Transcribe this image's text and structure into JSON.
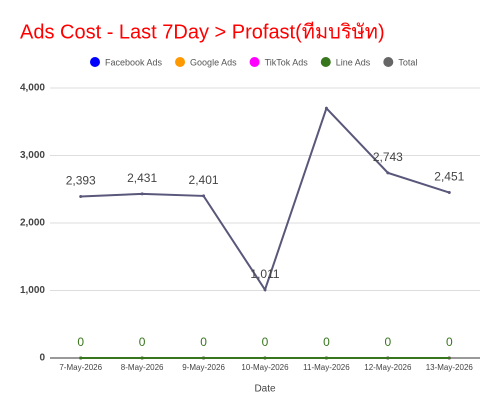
{
  "chart_data": {
    "type": "line",
    "title": "Ads Cost - Last 7Day > Profast(ทีมบริษัท)",
    "x_label": "Date",
    "categories": [
      "7-May-2026",
      "8-May-2026",
      "9-May-2026",
      "10-May-2026",
      "11-May-2026",
      "12-May-2026",
      "13-May-2026"
    ],
    "series": [
      {
        "name": "Facebook Ads",
        "color": "#0000ff",
        "values": [
          0,
          0,
          0,
          0,
          0,
          0,
          0
        ]
      },
      {
        "name": "Google Ads",
        "color": "#ff9900",
        "values": [
          0,
          0,
          0,
          0,
          0,
          0,
          0
        ]
      },
      {
        "name": "TikTok Ads",
        "color": "#ff00ff",
        "values": [
          0,
          0,
          0,
          0,
          0,
          0,
          0
        ]
      },
      {
        "name": "Line Ads",
        "color": "#38761d",
        "values": [
          0,
          0,
          0,
          0,
          0,
          0,
          0
        ],
        "value_labels": [
          "0",
          "0",
          "0",
          "0",
          "0",
          "0",
          "0"
        ]
      },
      {
        "name": "Total",
        "color": "#59577a",
        "values": [
          2393,
          2431,
          2401,
          1011,
          3700,
          2743,
          2451
        ],
        "value_labels": [
          "2,393",
          "2,431",
          "2,401",
          "1,011",
          null,
          "2,743",
          "2,451"
        ]
      }
    ],
    "ylim": [
      0,
      4000
    ],
    "yticks": [
      0,
      {
        "value": 1000,
        "label": "1,000"
      },
      {
        "value": 2000,
        "label": "2,000"
      },
      {
        "value": 3000,
        "label": "3,000"
      },
      {
        "value": 4000,
        "label": "4,000"
      }
    ],
    "grid": true,
    "legend": "top"
  }
}
